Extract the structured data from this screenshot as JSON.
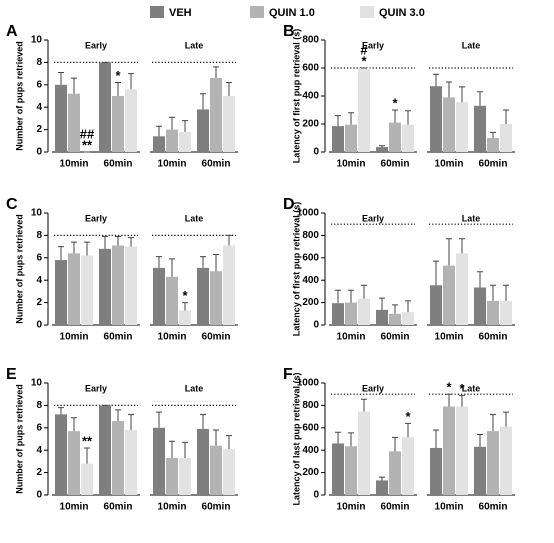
{
  "legend": [
    {
      "name": "VEH",
      "color": "#7f7f7f"
    },
    {
      "name": "QUIN 1.0",
      "color": "#b3b3b3"
    },
    {
      "name": "QUIN 3.0",
      "color": "#e2e2e2"
    }
  ],
  "chart_data": [
    {
      "type": "bar",
      "label": "A",
      "ylabel": "Number of pups retrieved",
      "groups": [
        "Early",
        "Late"
      ],
      "categories": [
        "10min",
        "60min",
        "10min",
        "60min"
      ],
      "ylim": [
        0,
        10
      ],
      "yticks": [
        0,
        2,
        4,
        6,
        8,
        10
      ],
      "ref_line": 8,
      "series": [
        {
          "values": [
            6.0,
            8.0,
            1.4,
            3.8
          ],
          "errors": [
            1.1,
            0,
            0.9,
            1.4
          ]
        },
        {
          "values": [
            5.2,
            5.0,
            2.0,
            6.6
          ],
          "errors": [
            1.4,
            1.2,
            1.1,
            1.0
          ]
        },
        {
          "values": [
            0,
            5.6,
            1.8,
            5.0
          ],
          "errors": [
            0,
            1.4,
            1.0,
            1.2
          ]
        }
      ],
      "annotations": [
        {
          "text": "**",
          "category": 0,
          "series": 2
        },
        {
          "text": "##",
          "category": 0,
          "series": 2
        },
        {
          "text": "*",
          "category": 1,
          "series": 1
        }
      ]
    },
    {
      "type": "bar",
      "label": "B",
      "ylabel": "Latency of first pup retrieval (s)",
      "groups": [
        "Early",
        "Late"
      ],
      "categories": [
        "10min",
        "60min",
        "10min",
        "60min"
      ],
      "ylim": [
        0,
        800
      ],
      "yticks": [
        0,
        200,
        400,
        600,
        800
      ],
      "ref_line": 600,
      "series": [
        {
          "values": [
            185,
            35,
            470,
            330
          ],
          "errors": [
            75,
            10,
            85,
            100
          ]
        },
        {
          "values": [
            195,
            210,
            390,
            100
          ],
          "errors": [
            85,
            90,
            110,
            40
          ]
        },
        {
          "values": [
            600,
            195,
            355,
            200
          ],
          "errors": [
            0,
            100,
            110,
            100
          ]
        }
      ],
      "annotations": [
        {
          "text": "*",
          "category": 0,
          "series": 2
        },
        {
          "text": "#",
          "category": 0,
          "series": 2
        },
        {
          "text": "*",
          "category": 1,
          "series": 1
        }
      ]
    },
    {
      "type": "bar",
      "label": "C",
      "ylabel": "Number of pups retrieved",
      "groups": [
        "Early",
        "Late"
      ],
      "categories": [
        "10min",
        "60min",
        "10min",
        "60min"
      ],
      "ylim": [
        0,
        10
      ],
      "yticks": [
        0,
        2,
        4,
        6,
        8,
        10
      ],
      "ref_line": 8,
      "series": [
        {
          "values": [
            5.8,
            6.8,
            5.1,
            5.1
          ],
          "errors": [
            1.2,
            1.1,
            1.0,
            1.0
          ]
        },
        {
          "values": [
            6.4,
            7.1,
            4.3,
            4.8
          ],
          "errors": [
            1.0,
            0.8,
            1.6,
            1.5
          ]
        },
        {
          "values": [
            6.2,
            7.0,
            1.3,
            7.1
          ],
          "errors": [
            1.2,
            0.8,
            0.7,
            0.9
          ]
        }
      ],
      "annotations": [
        {
          "text": "*",
          "category": 2,
          "series": 2
        }
      ]
    },
    {
      "type": "bar",
      "label": "D",
      "ylabel": "Latency of first pup retrieval (s)",
      "groups": [
        "Early",
        "Late"
      ],
      "categories": [
        "10min",
        "60min",
        "10min",
        "60min"
      ],
      "ylim": [
        0,
        1000
      ],
      "yticks": [
        0,
        200,
        400,
        600,
        800,
        1000
      ],
      "ref_line": 900,
      "series": [
        {
          "values": [
            195,
            135,
            355,
            335
          ],
          "errors": [
            115,
            105,
            215,
            140
          ]
        },
        {
          "values": [
            200,
            100,
            530,
            215
          ],
          "errors": [
            110,
            80,
            240,
            140
          ]
        },
        {
          "values": [
            235,
            115,
            640,
            215
          ],
          "errors": [
            120,
            100,
            130,
            140
          ]
        }
      ],
      "annotations": []
    },
    {
      "type": "bar",
      "label": "E",
      "ylabel": "Number of pups retrieved",
      "groups": [
        "Early",
        "Late"
      ],
      "categories": [
        "10min",
        "60min",
        "10min",
        "60min"
      ],
      "ylim": [
        0,
        10
      ],
      "yticks": [
        0,
        2,
        4,
        6,
        8,
        10
      ],
      "ref_line": 8,
      "series": [
        {
          "values": [
            7.2,
            8.0,
            6.0,
            5.9
          ],
          "errors": [
            0.6,
            0,
            1.4,
            1.3
          ]
        },
        {
          "values": [
            5.7,
            6.6,
            3.3,
            4.4
          ],
          "errors": [
            1.2,
            1.0,
            1.5,
            1.4
          ]
        },
        {
          "values": [
            2.8,
            5.8,
            3.3,
            4.1
          ],
          "errors": [
            1.4,
            1.4,
            1.4,
            1.2
          ]
        }
      ],
      "annotations": [
        {
          "text": "**",
          "category": 0,
          "series": 2
        }
      ]
    },
    {
      "type": "bar",
      "label": "F",
      "ylabel": "Latency of last pup retrieval (s)",
      "groups": [
        "Early",
        "Late"
      ],
      "categories": [
        "10min",
        "60min",
        "10min",
        "60min"
      ],
      "ylim": [
        0,
        1000
      ],
      "yticks": [
        0,
        200,
        400,
        600,
        800,
        1000
      ],
      "ref_line": 900,
      "series": [
        {
          "values": [
            460,
            130,
            420,
            430
          ],
          "errors": [
            100,
            30,
            160,
            110
          ]
        },
        {
          "values": [
            435,
            390,
            790,
            570
          ],
          "errors": [
            120,
            125,
            110,
            150
          ]
        },
        {
          "values": [
            745,
            515,
            790,
            610
          ],
          "errors": [
            110,
            125,
            100,
            130
          ]
        }
      ],
      "annotations": [
        {
          "text": "*",
          "category": 1,
          "series": 2
        },
        {
          "text": "*",
          "category": 2,
          "series": 1
        },
        {
          "text": "*",
          "category": 2,
          "series": 2
        }
      ]
    }
  ]
}
